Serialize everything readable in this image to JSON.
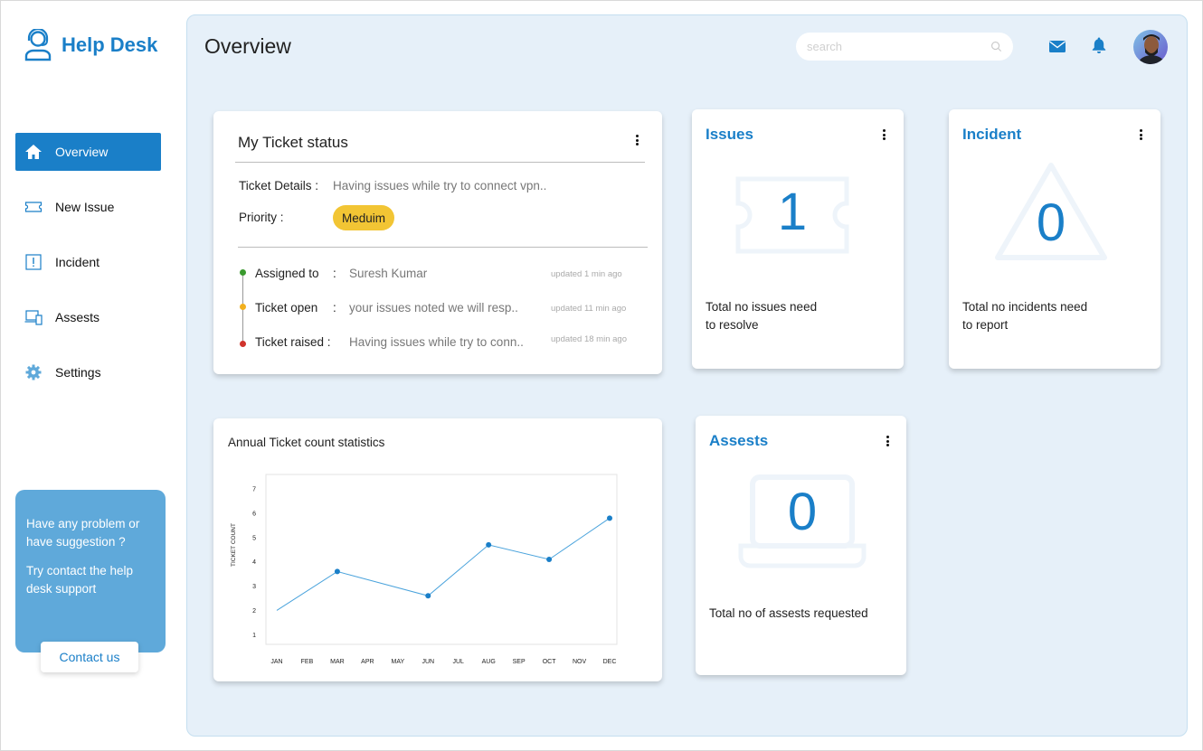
{
  "app": {
    "title": "Help Desk"
  },
  "sidebar": {
    "items": [
      {
        "label": "Overview",
        "icon": "home-icon",
        "active": true
      },
      {
        "label": "New Issue",
        "icon": "ticket-icon",
        "active": false
      },
      {
        "label": "Incident",
        "icon": "alert-icon",
        "active": false
      },
      {
        "label": "Assests",
        "icon": "devices-icon",
        "active": false
      },
      {
        "label": "Settings",
        "icon": "gear-icon",
        "active": false
      }
    ],
    "help": {
      "line1": "Have any problem or have suggestion ?",
      "line2": "Try contact the help desk support",
      "button": "Contact us"
    }
  },
  "header": {
    "title": "Overview",
    "search_placeholder": "search"
  },
  "ticket_status": {
    "title": "My Ticket status",
    "details_label": "Ticket Details :",
    "details_value": "Having issues while try to connect vpn..",
    "priority_label": "Priority :",
    "priority_value": "Meduim",
    "timeline": [
      {
        "label": "Assigned to",
        "colon": ":",
        "value": "Suresh Kumar",
        "time": "updated 1 min ago",
        "color": "#3a9a2e"
      },
      {
        "label": "Ticket open",
        "colon": ":",
        "value": "your issues noted we will resp..",
        "time": "updated 11 min ago",
        "color": "#f2b01e"
      },
      {
        "label": "Ticket raised :",
        "colon": "",
        "value": "Having issues while try to conn..",
        "time": "updated 18 min ago",
        "color": "#d0342c"
      }
    ]
  },
  "stats": {
    "issues": {
      "title": "Issues",
      "count": "1",
      "desc_line1": "Total no issues need",
      "desc_line2": "to resolve"
    },
    "incident": {
      "title": "Incident",
      "count": "0",
      "desc_line1": "Total no incidents need",
      "desc_line2": "to report"
    },
    "assests": {
      "title": "Assests",
      "count": "0",
      "desc_line1": "Total no of assests requested"
    }
  },
  "colors": {
    "accent": "#1a7fc8",
    "panel": "#e6f0f9",
    "help_card": "#5fa9da",
    "badge": "#f2c534"
  },
  "chart_data": {
    "type": "line",
    "title": "Annual Ticket count statistics",
    "xlabel": "",
    "ylabel": "TICKET COUNT",
    "categories": [
      "JAN",
      "FEB",
      "MAR",
      "APR",
      "MAY",
      "JUN",
      "JUL",
      "AUG",
      "SEP",
      "OCT",
      "NOV",
      "DEC"
    ],
    "x": [
      "JAN",
      "MAR",
      "JUN",
      "AUG",
      "OCT",
      "DEC"
    ],
    "values": [
      2,
      3.6,
      2.6,
      4.7,
      4.1,
      5.8
    ],
    "marker_indices": [
      1,
      2,
      3,
      4,
      5
    ],
    "yticks": [
      1,
      2,
      3,
      4,
      5,
      6,
      7
    ],
    "ylim": [
      0.6,
      7.6
    ],
    "grid": false
  }
}
